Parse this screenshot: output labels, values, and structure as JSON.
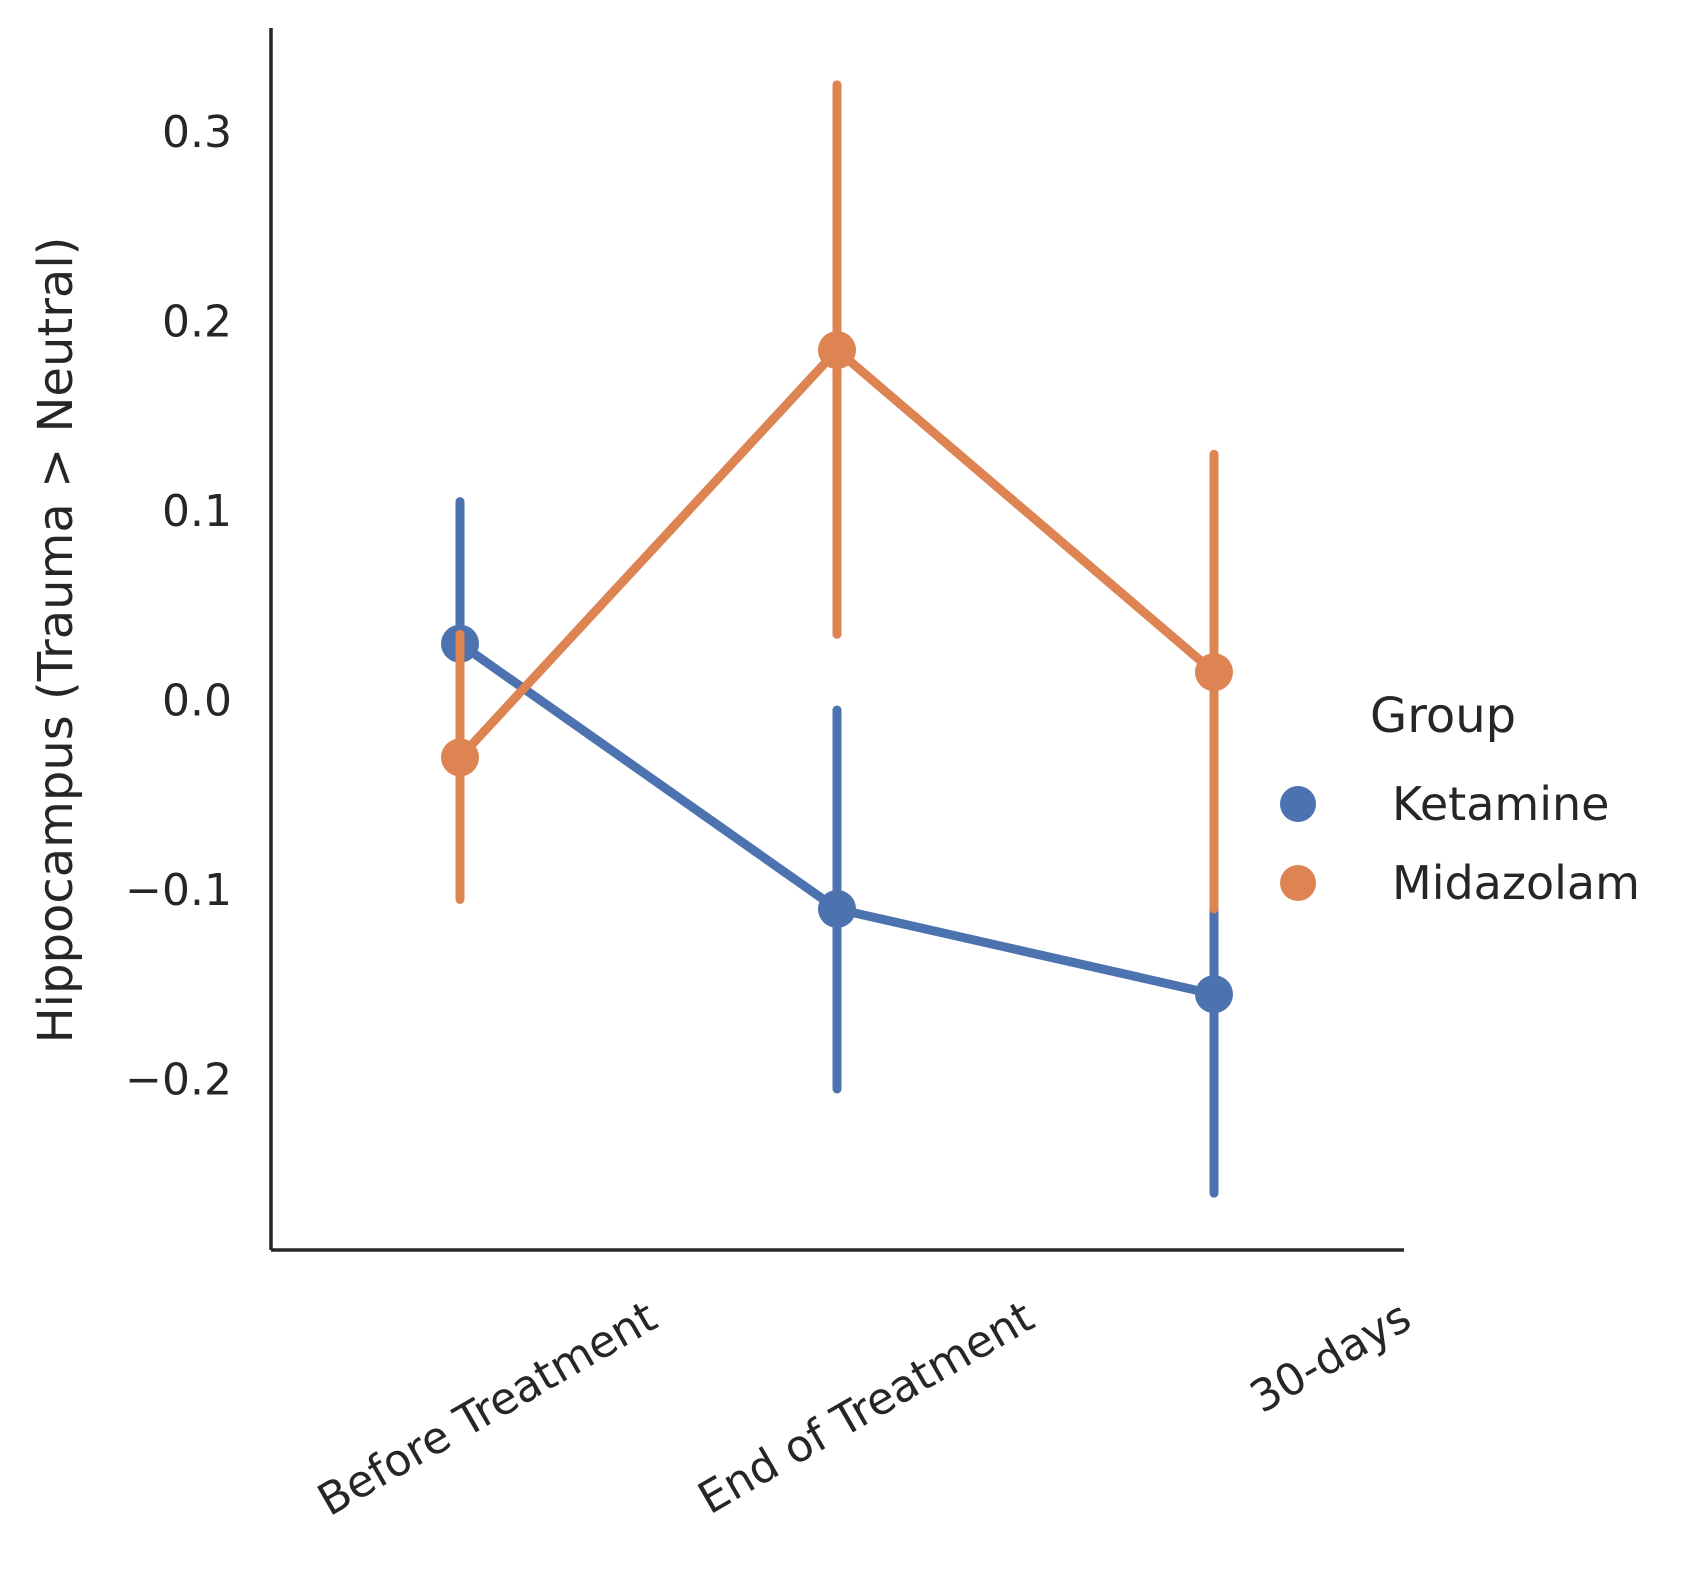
{
  "chart_data": {
    "type": "line",
    "title": "",
    "xlabel": "",
    "ylabel": "Hippocampus (Trauma > Neutral)",
    "categories": [
      "Before Treatment",
      "End of Treatment",
      "30-days"
    ],
    "y_ticks": [
      -0.2,
      -0.1,
      0.0,
      0.1,
      0.2,
      0.3
    ],
    "y_tick_labels": [
      "−0.2",
      "−0.1",
      "0.0",
      "0.1",
      "0.2",
      "0.3"
    ],
    "ylim": [
      -0.29,
      0.355
    ],
    "grid": false,
    "legend": {
      "title": "Group",
      "placement": "right"
    },
    "series": [
      {
        "name": "Ketamine",
        "color": "#4c72b0",
        "values": [
          0.03,
          -0.11,
          -0.155
        ],
        "ci_low": [
          -0.035,
          -0.205,
          -0.26
        ],
        "ci_high": [
          0.105,
          -0.005,
          -0.11
        ]
      },
      {
        "name": "Midazolam",
        "color": "#dd8452",
        "values": [
          -0.03,
          0.185,
          0.015
        ],
        "ci_low": [
          -0.105,
          0.035,
          -0.11
        ],
        "ci_high": [
          0.035,
          0.325,
          0.13
        ]
      }
    ]
  }
}
